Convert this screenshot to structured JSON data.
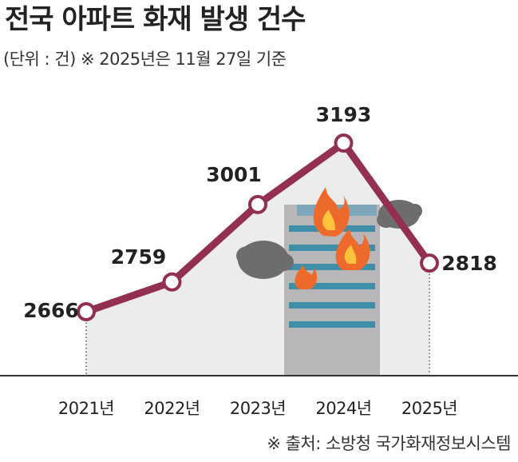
{
  "chart_data": {
    "type": "line",
    "title": "전국 아파트 화재 발생 건수",
    "subtitle": "(단위 : 건) ※ 2025년은 11월 27일 기준",
    "source": "※ 출처: 소방청 국가화재정보시스템",
    "categories": [
      "2021년",
      "2022년",
      "2023년",
      "2024년",
      "2025년"
    ],
    "values": [
      2666,
      2759,
      3001,
      3193,
      2818
    ],
    "color": "#93304f"
  }
}
